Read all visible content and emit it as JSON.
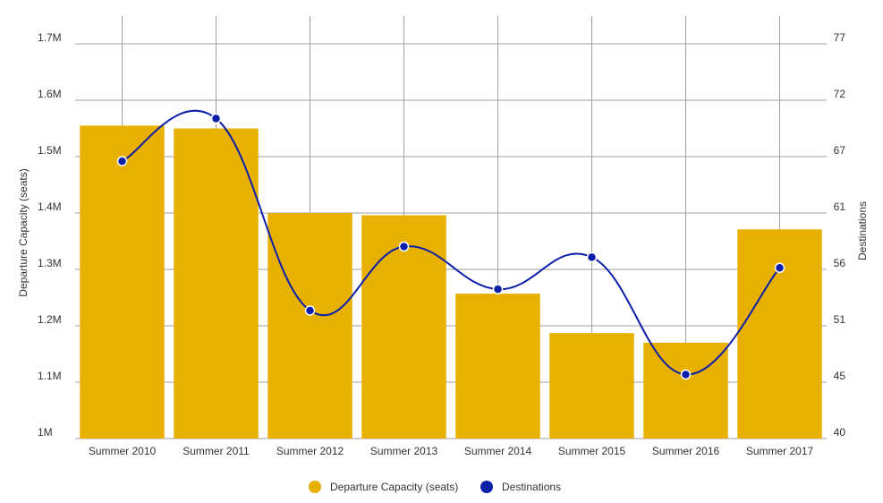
{
  "chart_data": {
    "type": "bar",
    "categories": [
      "Summer 2010",
      "Summer 2011",
      "Summer 2012",
      "Summer 2013",
      "Summer 2014",
      "Summer 2015",
      "Summer 2016",
      "Summer 2017"
    ],
    "series": [
      {
        "name": "Departure Capacity (seats)",
        "type": "bar",
        "axis": "left",
        "color": "#E8B000",
        "values": [
          1555000,
          1550000,
          1400000,
          1396000,
          1257000,
          1187000,
          1170000,
          1371000
        ]
      },
      {
        "name": "Destinations",
        "type": "line",
        "axis": "right",
        "color": "#0B1FA8",
        "values": [
          66,
          70,
          52,
          58,
          54,
          57,
          46,
          56
        ]
      }
    ],
    "ylabel": "Departure Capacity (seats)",
    "y2label": "Destinations",
    "ylim": [
      1000000,
      1700000
    ],
    "y2lim": [
      40,
      77
    ],
    "yticks": [
      {
        "value": 1000000,
        "label": "1M"
      },
      {
        "value": 1100000,
        "label": "1.1M"
      },
      {
        "value": 1200000,
        "label": "1.2M"
      },
      {
        "value": 1300000,
        "label": "1.3M"
      },
      {
        "value": 1400000,
        "label": "1.4M"
      },
      {
        "value": 1500000,
        "label": "1.5M"
      },
      {
        "value": 1600000,
        "label": "1.6M"
      },
      {
        "value": 1700000,
        "label": "1.7M"
      }
    ],
    "y2ticks": [
      "40",
      "45",
      "51",
      "56",
      "61",
      "67",
      "72",
      "77"
    ],
    "grid": true,
    "legend": "bottom"
  }
}
